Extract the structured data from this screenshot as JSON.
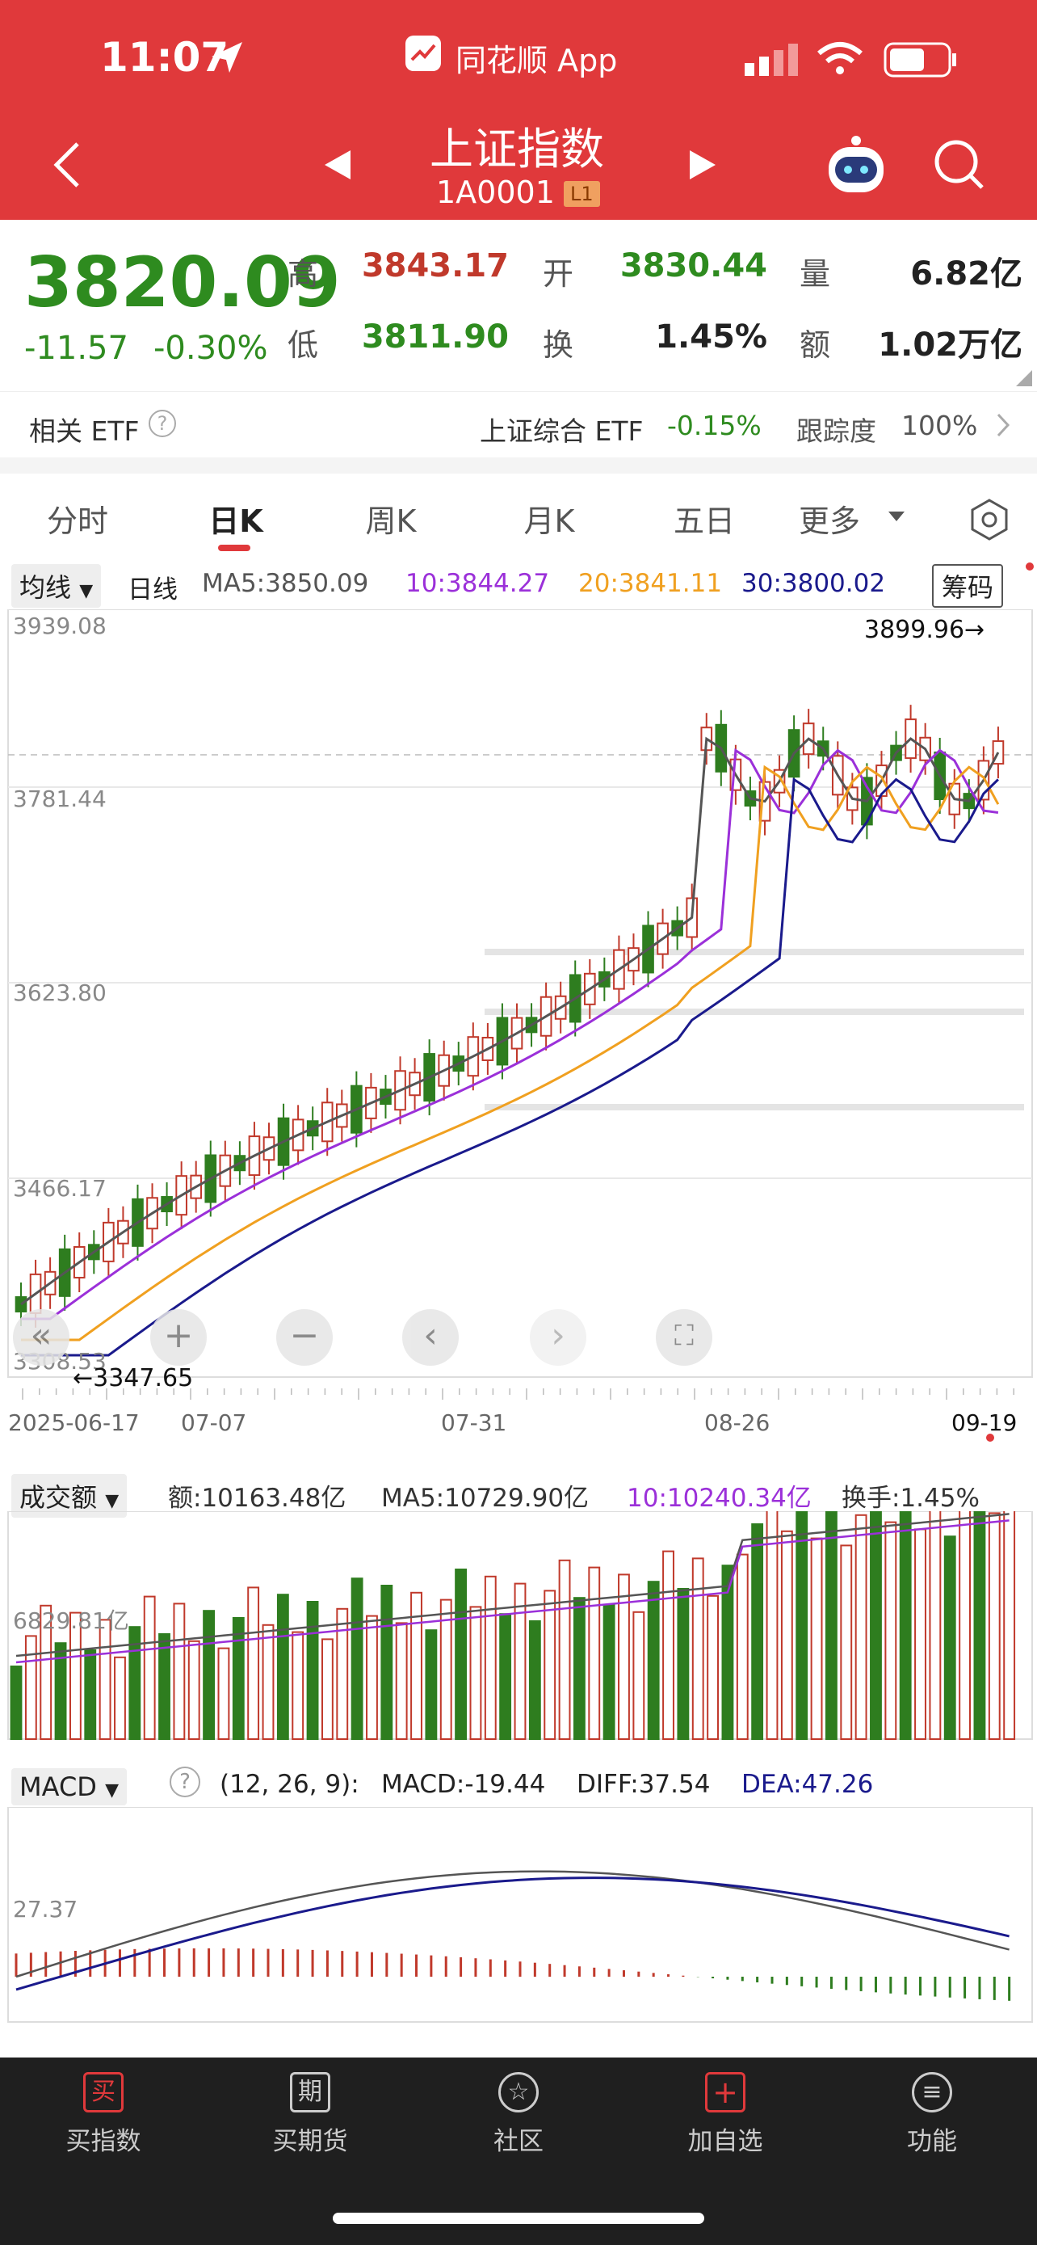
{
  "status": {
    "time": "11:07",
    "app_badge": "同花顺 App"
  },
  "header": {
    "title": "上证指数",
    "code": "1A0001",
    "level": "L1"
  },
  "quote": {
    "price": "3820.09",
    "change": "-11.57",
    "change_pct": "-0.30%",
    "high_label": "高",
    "high": "3843.17",
    "low_label": "低",
    "low": "3811.90",
    "open_label": "开",
    "open": "3830.44",
    "turnover_label": "换",
    "turnover": "1.45%",
    "volume_label": "量",
    "volume": "6.82亿",
    "amount_label": "额",
    "amount": "1.02万亿"
  },
  "etf": {
    "label": "相关 ETF",
    "name": "上证综合 ETF",
    "change": "-0.15%",
    "track_label": "跟踪度",
    "track": "100%"
  },
  "tabs": [
    "分时",
    "日K",
    "周K",
    "月K",
    "五日",
    "更多"
  ],
  "active_tab": 1,
  "kline": {
    "ma_type": "均线",
    "period": "日线",
    "ma5": "MA5:3850.09",
    "ma10": "10:3844.27",
    "ma20": "20:3841.11",
    "ma30": "30:3800.02",
    "chip_button": "筹码",
    "y_labels": [
      "3939.08",
      "3781.44",
      "3623.80",
      "3466.17",
      "3308.53"
    ],
    "high_mark": "3899.96→",
    "low_mark": "←3347.65",
    "x_labels": [
      "2025-06-17",
      "07-07",
      "07-31",
      "08-26",
      "09-19"
    ],
    "colors": {
      "up": "#c0392b",
      "down": "#2e7d1f",
      "ma5": "#555555",
      "ma10": "#9b30d9",
      "ma20": "#f0a020",
      "ma30": "#1a1a8c"
    }
  },
  "volume": {
    "selector": "成交额",
    "amount": "额:10163.48亿",
    "ma5": "MA5:10729.90亿",
    "ma10": "10:10240.34亿",
    "turnover": "换手:1.45%",
    "y_label": "6829.81亿"
  },
  "macd": {
    "selector": "MACD",
    "params": "(12, 26, 9):",
    "macd": "MACD:-19.44",
    "diff": "DIFF:37.54",
    "dea": "DEA:47.26",
    "y_label": "27.37"
  },
  "nav": [
    {
      "label": "买指数",
      "icon": "买"
    },
    {
      "label": "买期货",
      "icon": "期"
    },
    {
      "label": "社区",
      "icon": "☆"
    },
    {
      "label": "加自选",
      "icon": "+"
    },
    {
      "label": "功能",
      "icon": "≡"
    }
  ]
}
